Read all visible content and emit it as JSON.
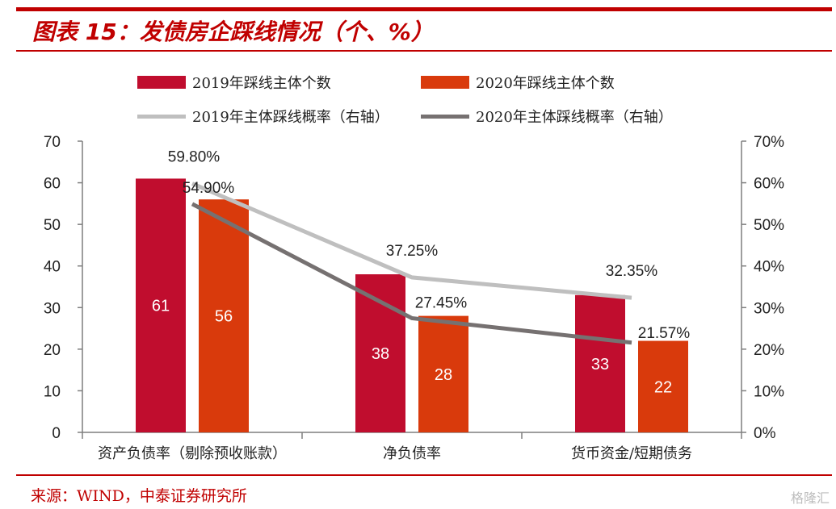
{
  "header": {
    "title": "图表 15：发债房企踩线情况（个、%）"
  },
  "footer": {
    "source": "来源：WIND，中泰证券研究所",
    "watermark": "格隆汇"
  },
  "chart_data": {
    "type": "bar",
    "categories": [
      "资产负债率（剔除预收账款）",
      "净负债率",
      "货币资金/短期债务"
    ],
    "series": [
      {
        "name": "2019年踩线主体个数",
        "kind": "bar",
        "axis": "left",
        "color": "#c00d2e",
        "values": [
          61,
          38,
          33
        ],
        "labels": [
          "61",
          "38",
          "33"
        ]
      },
      {
        "name": "2020年踩线主体个数",
        "kind": "bar",
        "axis": "left",
        "color": "#d93a0c",
        "values": [
          56,
          28,
          22
        ],
        "labels": [
          "56",
          "28",
          "22"
        ]
      },
      {
        "name": "2019年主体踩线概率（右轴）",
        "kind": "line",
        "axis": "right",
        "color": "#bfbfbf",
        "values": [
          59.8,
          37.25,
          32.35
        ],
        "labels": [
          "59.80%",
          "37.25%",
          "32.35%"
        ]
      },
      {
        "name": "2020年主体踩线概率（右轴）",
        "kind": "line",
        "axis": "right",
        "color": "#767171",
        "values": [
          54.9,
          27.45,
          21.57
        ],
        "labels": [
          "54.90%",
          "27.45%",
          "21.57%"
        ]
      }
    ],
    "ylim": [
      0,
      70
    ],
    "ylim_right": [
      0,
      70
    ],
    "yticks": [
      "0",
      "10",
      "20",
      "30",
      "40",
      "50",
      "60",
      "70"
    ],
    "yticks_right": [
      "0%",
      "10%",
      "20%",
      "30%",
      "40%",
      "50%",
      "60%",
      "70%"
    ],
    "grid": false,
    "legend_position": "top"
  }
}
